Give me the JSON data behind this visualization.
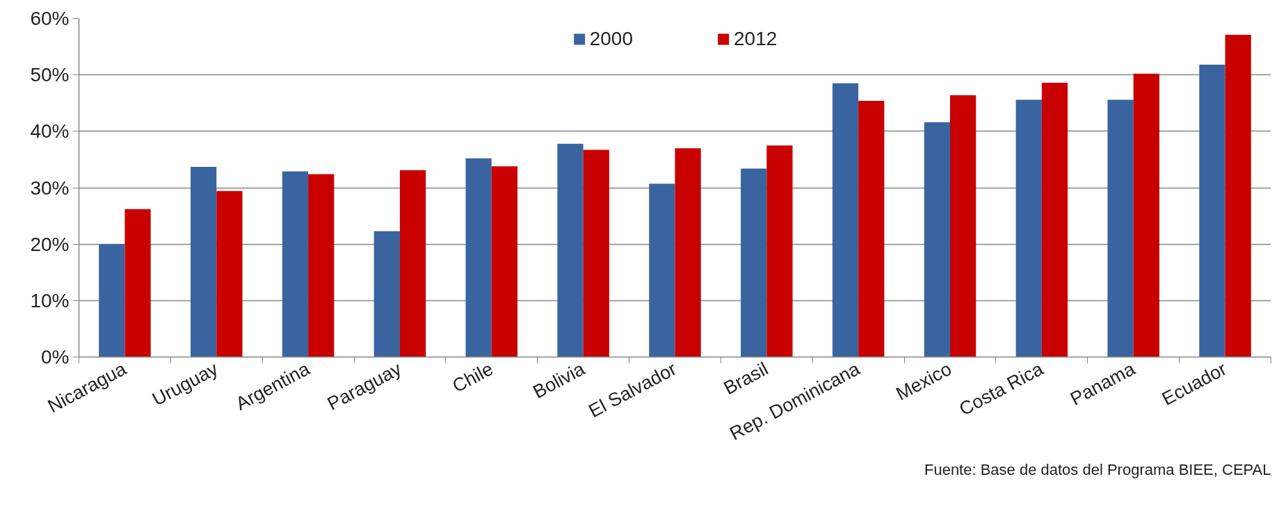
{
  "chart_data": {
    "type": "bar",
    "categories": [
      "Nicaragua",
      "Uruguay",
      "Argentina",
      "Paraguay",
      "Chile",
      "Bolivia",
      "El Salvador",
      "Brasil",
      "Rep. Dominicana",
      "Mexico",
      "Costa Rica",
      "Panama",
      "Ecuador"
    ],
    "series": [
      {
        "name": "2000",
        "color": "#3a64a0",
        "values": [
          20.0,
          33.7,
          32.9,
          22.3,
          35.2,
          37.8,
          30.7,
          33.4,
          48.5,
          41.6,
          45.6,
          45.6,
          51.8
        ]
      },
      {
        "name": "2012",
        "color": "#c80000",
        "values": [
          26.2,
          29.4,
          32.4,
          33.1,
          33.8,
          36.7,
          37.0,
          37.5,
          45.4,
          46.4,
          48.6,
          50.2,
          57.1
        ]
      }
    ],
    "ylim": [
      0,
      60
    ],
    "yticks": [
      {
        "value": 0,
        "label": "0%"
      },
      {
        "value": 10,
        "label": "10%"
      },
      {
        "value": 20,
        "label": "20%"
      },
      {
        "value": 30,
        "label": "30%"
      },
      {
        "value": 40,
        "label": "40%"
      },
      {
        "value": 50,
        "label": "50%"
      },
      {
        "value": 60,
        "label": "60%"
      }
    ],
    "grid": "y",
    "legend": "top",
    "annotations": [
      "Fuente: Base de datos del Programa BIEE, CEPAL"
    ]
  }
}
